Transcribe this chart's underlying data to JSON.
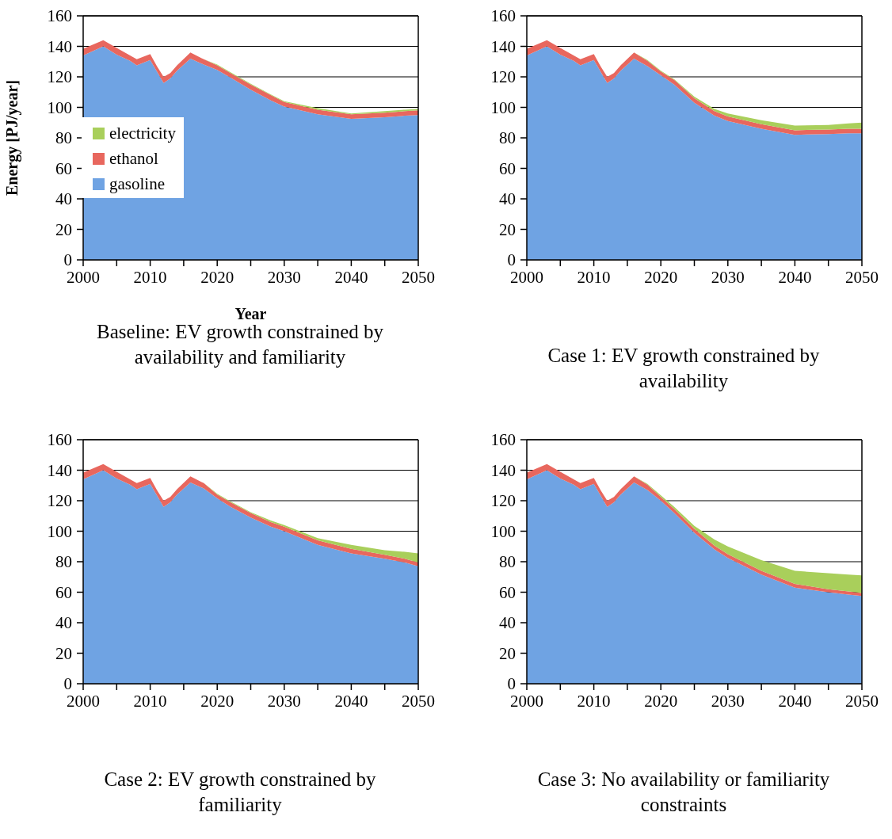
{
  "chart_data": [
    {
      "type": "area",
      "stacked": true,
      "title": "Baseline: EV growth constrained by availability and familiarity",
      "xlabel": "Year",
      "ylabel": "Energy [PJ/year]",
      "x": [
        2000,
        2003,
        2005,
        2007,
        2008,
        2010,
        2011,
        2012,
        2013,
        2014,
        2016,
        2018,
        2020,
        2022,
        2025,
        2028,
        2030,
        2035,
        2040,
        2045,
        2048,
        2050
      ],
      "xlim": [
        2000,
        2050
      ],
      "xticks": [
        2000,
        {
          "value": 2005,
          "label": null
        },
        2010,
        {
          "value": 2015,
          "label": null
        },
        2020,
        {
          "value": 2025,
          "label": null
        },
        2030,
        {
          "value": 2035,
          "label": null
        },
        2040,
        {
          "value": 2045,
          "label": null
        },
        2050
      ],
      "ylim": [
        0,
        160
      ],
      "yticks": [
        0,
        20,
        40,
        60,
        80,
        100,
        120,
        140,
        160
      ],
      "grid": "y",
      "legend": "left",
      "series": [
        {
          "name": "gasoline",
          "color": "#6fa3e3",
          "values": [
            134,
            140,
            134.5,
            130.5,
            127.5,
            131,
            123.5,
            116,
            119,
            124,
            132,
            128,
            124.5,
            119.5,
            111.5,
            104.5,
            100.5,
            95.5,
            92.5,
            93.5,
            94.5,
            95
          ]
        },
        {
          "name": "ethanol",
          "color": "#e8675e",
          "values": [
            4.5,
            4,
            4.5,
            3.5,
            4,
            4,
            3.5,
            4,
            3.5,
            3.5,
            4,
            3.5,
            3,
            3,
            3.5,
            3.5,
            3,
            3,
            3,
            3,
            3,
            3
          ]
        },
        {
          "name": "electricity",
          "color": "#a9cf5b",
          "values": [
            0,
            0,
            0,
            0,
            0,
            0,
            0,
            0,
            0,
            0,
            0,
            0,
            0.5,
            0.5,
            0.5,
            0.5,
            0.5,
            1,
            0.5,
            1,
            1,
            1
          ]
        }
      ]
    },
    {
      "type": "area",
      "stacked": true,
      "title": "Case 1: EV growth constrained by availability",
      "x": [
        2000,
        2003,
        2005,
        2007,
        2008,
        2010,
        2011,
        2012,
        2013,
        2014,
        2016,
        2018,
        2020,
        2022,
        2025,
        2028,
        2030,
        2035,
        2040,
        2045,
        2048,
        2050
      ],
      "xlim": [
        2000,
        2050
      ],
      "xticks": [
        2000,
        {
          "value": 2005,
          "label": null
        },
        2010,
        {
          "value": 2015,
          "label": null
        },
        2020,
        {
          "value": 2025,
          "label": null
        },
        2030,
        {
          "value": 2035,
          "label": null
        },
        2040,
        {
          "value": 2045,
          "label": null
        },
        2050
      ],
      "ylim": [
        0,
        160
      ],
      "yticks": [
        0,
        20,
        40,
        60,
        80,
        100,
        120,
        140,
        160
      ],
      "grid": "y",
      "series": [
        {
          "color": "#6fa3e3",
          "values": [
            134,
            140,
            134.5,
            130.5,
            127.5,
            131,
            123.5,
            116,
            119,
            124,
            132,
            127,
            121,
            115,
            103,
            94.5,
            91,
            86,
            82,
            82.5,
            83,
            83
          ]
        },
        {
          "color": "#e8675e",
          "values": [
            4.5,
            4,
            4.5,
            3.5,
            4,
            4,
            3.5,
            4,
            3.5,
            3.5,
            4,
            3.5,
            2.5,
            3,
            3,
            3,
            3,
            3,
            3,
            3,
            3,
            3
          ]
        },
        {
          "color": "#a9cf5b",
          "values": [
            0,
            0,
            0,
            0,
            0,
            0,
            0,
            0,
            0,
            0,
            0,
            0.5,
            0.5,
            0.5,
            1,
            1.5,
            2,
            2.5,
            3,
            3,
            3.5,
            4
          ]
        }
      ]
    },
    {
      "type": "area",
      "stacked": true,
      "title": "Case 2: EV growth constrained by familiarity",
      "x": [
        2000,
        2003,
        2005,
        2007,
        2008,
        2010,
        2011,
        2012,
        2013,
        2014,
        2016,
        2018,
        2020,
        2022,
        2025,
        2028,
        2030,
        2035,
        2040,
        2045,
        2048,
        2050
      ],
      "xlim": [
        2000,
        2050
      ],
      "xticks": [
        2000,
        {
          "value": 2005,
          "label": null
        },
        2010,
        {
          "value": 2015,
          "label": null
        },
        2020,
        {
          "value": 2025,
          "label": null
        },
        2030,
        {
          "value": 2035,
          "label": null
        },
        2040,
        {
          "value": 2045,
          "label": null
        },
        2050
      ],
      "ylim": [
        0,
        160
      ],
      "yticks": [
        0,
        20,
        40,
        60,
        80,
        100,
        120,
        140,
        160
      ],
      "grid": "y",
      "series": [
        {
          "color": "#6fa3e3",
          "values": [
            134,
            140,
            134.5,
            130.5,
            127.5,
            131,
            123.5,
            116,
            119,
            124,
            132,
            128,
            121.5,
            116,
            109,
            103,
            100,
            91,
            85.5,
            82,
            79.5,
            77
          ]
        },
        {
          "color": "#e8675e",
          "values": [
            4.5,
            4,
            4.5,
            3.5,
            4,
            4,
            3.5,
            4,
            3.5,
            3.5,
            4,
            3.5,
            2.5,
            3,
            3,
            3,
            3,
            3,
            3,
            2.5,
            2.5,
            2.5
          ]
        },
        {
          "color": "#a9cf5b",
          "values": [
            0,
            0,
            0,
            0,
            0,
            0,
            0,
            0,
            0,
            0,
            0,
            0,
            0.5,
            0.5,
            0.5,
            1,
            1,
            1.5,
            2.5,
            3,
            4.5,
            6
          ]
        }
      ]
    },
    {
      "type": "area",
      "stacked": true,
      "title": "Case 3: No availability or familiarity constraints",
      "x": [
        2000,
        2003,
        2005,
        2007,
        2008,
        2010,
        2011,
        2012,
        2013,
        2014,
        2016,
        2018,
        2020,
        2022,
        2025,
        2028,
        2030,
        2035,
        2040,
        2045,
        2048,
        2050
      ],
      "xlim": [
        2000,
        2050
      ],
      "xticks": [
        2000,
        {
          "value": 2005,
          "label": null
        },
        2010,
        {
          "value": 2015,
          "label": null
        },
        2020,
        {
          "value": 2025,
          "label": null
        },
        2030,
        {
          "value": 2035,
          "label": null
        },
        2040,
        {
          "value": 2045,
          "label": null
        },
        2050
      ],
      "ylim": [
        0,
        160
      ],
      "yticks": [
        0,
        20,
        40,
        60,
        80,
        100,
        120,
        140,
        160
      ],
      "grid": "y",
      "series": [
        {
          "color": "#6fa3e3",
          "values": [
            134,
            140,
            134.5,
            130.5,
            127.5,
            131,
            123.5,
            116,
            119,
            124,
            132,
            127,
            120,
            112,
            99,
            88,
            82.5,
            71.5,
            63,
            60,
            58.5,
            57.5
          ]
        },
        {
          "color": "#e8675e",
          "values": [
            4.5,
            4,
            4.5,
            3.5,
            4,
            4,
            3.5,
            4,
            3.5,
            3.5,
            4,
            3.5,
            2.5,
            2.5,
            2.5,
            2.5,
            2.5,
            2.5,
            2.5,
            2,
            2,
            2
          ]
        },
        {
          "color": "#a9cf5b",
          "values": [
            0,
            0,
            0,
            0,
            0,
            0,
            0,
            0,
            0,
            0,
            0,
            0.5,
            1,
            1.5,
            2,
            4,
            5,
            7,
            8.5,
            10.5,
            11,
            11.5
          ]
        }
      ]
    }
  ]
}
